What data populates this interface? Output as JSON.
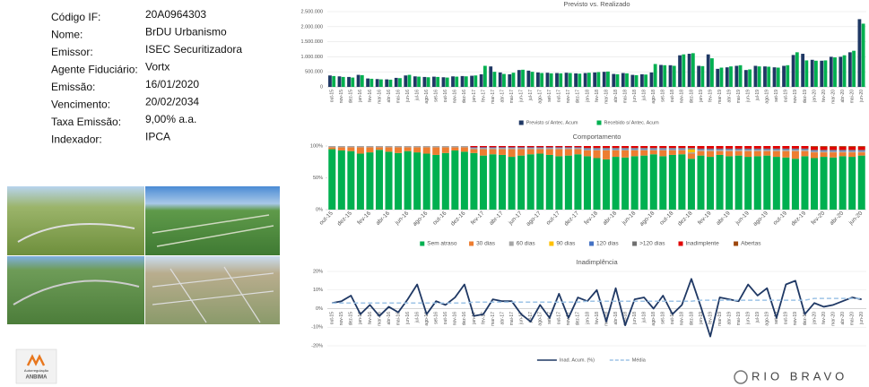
{
  "info": [
    {
      "label": "Código IF:",
      "value": "20A0964303"
    },
    {
      "label": "Nome:",
      "value": "BrDU Urbanismo"
    },
    {
      "label": "Emissor:",
      "value": "ISEC Securitizadora"
    },
    {
      "label": "Agente Fiduciário:",
      "value": "Vortx"
    },
    {
      "label": "Emissão:",
      "value": "16/01/2020"
    },
    {
      "label": "Vencimento:",
      "value": "20/02/2034"
    },
    {
      "label": "Taxa Emissão:",
      "value": "9,00% a.a."
    },
    {
      "label": "Indexador:",
      "value": "IPCA"
    }
  ],
  "logos": {
    "anbima_top": "Autorregulação",
    "anbima_bottom": "ANBIMA",
    "company": "RIO BRAVO"
  },
  "chart_data": [
    {
      "type": "bar",
      "title": "Previsto vs. Realizado",
      "categories": [
        "out-15",
        "nov-15",
        "dez-15",
        "jan-16",
        "fev-16",
        "mar-16",
        "abr-16",
        "mai-16",
        "jun-16",
        "jul-16",
        "ago-16",
        "set-16",
        "out-16",
        "nov-16",
        "dez-16",
        "jan-17",
        "fev-17",
        "mar-17",
        "abr-17",
        "mai-17",
        "jun-17",
        "jul-17",
        "ago-17",
        "set-17",
        "out-17",
        "nov-17",
        "dez-17",
        "jan-18",
        "fev-18",
        "mar-18",
        "abr-18",
        "mai-18",
        "jun-18",
        "jul-18",
        "ago-18",
        "set-18",
        "out-18",
        "nov-18",
        "dez-18",
        "jan-19",
        "fev-19",
        "mar-19",
        "abr-19",
        "mai-19",
        "jun-19",
        "jul-19",
        "ago-19",
        "set-19",
        "out-19",
        "nov-19",
        "dez-19",
        "jan-20",
        "fev-20",
        "mar-20",
        "abr-20",
        "mai-20",
        "jun-20"
      ],
      "series": [
        {
          "name": "Previsto s/ Antec. Acum",
          "color": "#1f3864",
          "values": [
            380000,
            350000,
            330000,
            400000,
            280000,
            260000,
            250000,
            300000,
            380000,
            350000,
            330000,
            340000,
            320000,
            350000,
            360000,
            370000,
            420000,
            680000,
            480000,
            420000,
            560000,
            540000,
            480000,
            470000,
            460000,
            470000,
            450000,
            460000,
            480000,
            500000,
            430000,
            460000,
            400000,
            420000,
            480000,
            730000,
            720000,
            1050000,
            1100000,
            700000,
            1080000,
            600000,
            650000,
            700000,
            560000,
            700000,
            680000,
            650000,
            700000,
            1060000,
            1100000,
            900000,
            870000,
            1000000,
            1000000,
            1150000,
            2250000
          ]
        },
        {
          "name": "Recebido s/ Antec. Acum",
          "color": "#00b050",
          "values": [
            360000,
            330000,
            310000,
            390000,
            270000,
            250000,
            240000,
            290000,
            400000,
            340000,
            320000,
            330000,
            310000,
            340000,
            350000,
            380000,
            700000,
            500000,
            430000,
            470000,
            570000,
            500000,
            460000,
            450000,
            450000,
            460000,
            440000,
            470000,
            490000,
            510000,
            420000,
            450000,
            390000,
            410000,
            760000,
            720000,
            700000,
            1080000,
            1120000,
            690000,
            950000,
            640000,
            680000,
            720000,
            580000,
            680000,
            670000,
            640000,
            720000,
            1150000,
            880000,
            870000,
            880000,
            980000,
            1050000,
            1200000,
            2100000
          ]
        }
      ],
      "ylim": [
        0,
        2500000
      ],
      "yticks": [
        0,
        {
          "value": 500000,
          "label": "500.000"
        },
        {
          "value": 1000000,
          "label": "1.000.000"
        },
        {
          "value": 1500000,
          "label": "1.500.000"
        },
        {
          "value": 2000000,
          "label": "2.000.000"
        },
        {
          "value": 2500000,
          "label": "2.500.000"
        }
      ],
      "grid": true,
      "legend": "bottom"
    },
    {
      "type": "stacked_bar",
      "title": "Comportamento",
      "categories": [
        "out-15",
        null,
        "dez-15",
        null,
        "fev-16",
        null,
        "abr-16",
        null,
        "jun-16",
        null,
        "ago-16",
        null,
        "out-16",
        null,
        "dez-16",
        null,
        "fev-17",
        null,
        "abr-17",
        null,
        "jun-17",
        null,
        "ago-17",
        null,
        "out-17",
        null,
        "dez-17",
        null,
        "fev-18",
        null,
        "abr-18",
        null,
        "jun-18",
        null,
        "ago-18",
        null,
        "out-18",
        null,
        "dez-18",
        null,
        "fev-19",
        null,
        "abr-19",
        null,
        "jun-19",
        null,
        "ago-19",
        null,
        "out-19",
        null,
        "dez-19",
        null,
        "fev-20",
        null,
        "abr-20",
        null,
        "jun-20"
      ],
      "series": [
        {
          "name": "Sem atraso",
          "color": "#00b050",
          "values": [
            95,
            93,
            92,
            88,
            90,
            94,
            91,
            89,
            92,
            90,
            88,
            86,
            89,
            93,
            91,
            89,
            85,
            87,
            86,
            83,
            85,
            87,
            88,
            86,
            84,
            85,
            87,
            84,
            81,
            79,
            83,
            82,
            84,
            85,
            87,
            84,
            86,
            87,
            80,
            85,
            83,
            86,
            84,
            85,
            83,
            84,
            85,
            83,
            82,
            80,
            84,
            81,
            83,
            82,
            84,
            83,
            85
          ]
        },
        {
          "name": "30 dias",
          "color": "#ed7d31",
          "values": [
            3,
            5,
            6,
            10,
            8,
            4,
            7,
            9,
            6,
            8,
            10,
            12,
            9,
            5,
            7,
            6,
            10,
            8,
            9,
            12,
            10,
            8,
            7,
            9,
            11,
            10,
            8,
            9,
            12,
            14,
            10,
            11,
            9,
            8,
            6,
            9,
            7,
            6,
            8,
            7,
            9,
            6,
            8,
            7,
            9,
            8,
            7,
            9,
            10,
            12,
            8,
            9,
            7,
            8,
            6,
            7,
            5
          ]
        },
        {
          "name": "60 dias",
          "color": "#a5a5a5",
          "values": [
            2,
            2,
            2,
            2,
            2,
            2,
            2,
            2,
            2,
            2,
            2,
            2,
            2,
            2,
            2,
            2,
            2,
            2,
            2,
            2,
            2,
            2,
            2,
            2,
            2,
            2,
            2,
            2,
            2,
            2,
            2,
            2,
            2,
            2,
            2,
            2,
            2,
            2,
            2,
            2,
            2,
            2,
            2,
            2,
            2,
            2,
            2,
            2,
            2,
            2,
            2,
            2,
            2,
            2,
            2,
            2,
            2
          ]
        },
        {
          "name": "90 dias",
          "color": "#ffc000",
          "values": [
            0,
            0,
            0,
            0,
            0,
            0,
            0,
            0,
            0,
            0,
            0,
            0,
            0,
            0,
            0,
            0,
            0,
            0,
            0,
            0,
            0,
            0,
            0,
            0,
            0,
            0,
            0,
            0,
            0,
            0,
            0,
            0,
            0,
            0,
            0,
            0,
            0,
            0,
            5,
            0,
            0,
            0,
            0,
            0,
            0,
            0,
            0,
            0,
            0,
            0,
            0,
            0,
            0,
            0,
            0,
            0,
            0
          ]
        },
        {
          "name": "120 dias",
          "color": "#4472c4",
          "values": [
            0,
            0,
            0,
            0,
            0,
            0,
            0,
            0,
            0,
            0,
            0,
            0,
            0,
            0,
            0,
            1,
            1,
            1,
            1,
            1,
            1,
            1,
            1,
            1,
            1,
            1,
            1,
            1,
            1,
            1,
            1,
            1,
            1,
            1,
            1,
            1,
            1,
            1,
            1,
            1,
            1,
            1,
            1,
            1,
            1,
            1,
            1,
            1,
            1,
            1,
            1,
            1,
            1,
            1,
            1,
            1,
            1
          ]
        },
        {
          "name": ">120 dias",
          "color": "#6f6f6f",
          "values": [
            0,
            0,
            0,
            0,
            0,
            0,
            0,
            0,
            0,
            0,
            0,
            0,
            0,
            0,
            0,
            0,
            0,
            0,
            0,
            0,
            0,
            0,
            0,
            0,
            0,
            0,
            0,
            1,
            1,
            1,
            1,
            1,
            1,
            1,
            1,
            1,
            1,
            1,
            1,
            1,
            1,
            1,
            1,
            1,
            1,
            1,
            1,
            1,
            1,
            1,
            1,
            1,
            1,
            1,
            1,
            1,
            1
          ]
        },
        {
          "name": "Inadimplente",
          "color": "#e00000",
          "values": [
            0,
            0,
            0,
            0,
            0,
            0,
            0,
            0,
            0,
            0,
            0,
            0,
            0,
            0,
            0,
            2,
            2,
            2,
            2,
            2,
            2,
            2,
            2,
            2,
            2,
            2,
            2,
            3,
            3,
            3,
            3,
            3,
            3,
            3,
            3,
            3,
            3,
            3,
            3,
            4,
            4,
            4,
            4,
            4,
            4,
            4,
            4,
            4,
            4,
            4,
            4,
            5,
            5,
            5,
            5,
            5,
            5
          ]
        },
        {
          "name": "Abertas",
          "color": "#9e480e",
          "values": [
            0,
            0,
            0,
            0,
            0,
            0,
            0,
            0,
            0,
            0,
            0,
            0,
            0,
            0,
            0,
            0,
            0,
            0,
            0,
            0,
            0,
            0,
            0,
            0,
            0,
            0,
            0,
            0,
            0,
            0,
            0,
            0,
            0,
            0,
            0,
            0,
            0,
            0,
            0,
            0,
            0,
            0,
            0,
            0,
            0,
            0,
            0,
            0,
            0,
            0,
            0,
            1,
            1,
            1,
            1,
            1,
            1
          ]
        }
      ],
      "ylim": [
        0,
        100
      ],
      "yticks": [
        {
          "value": 0,
          "label": "0%"
        },
        {
          "value": 50,
          "label": "50%"
        },
        {
          "value": 100,
          "label": "100%"
        }
      ],
      "grid": false,
      "legend": "bottom"
    },
    {
      "type": "line",
      "title": "Inadimplência",
      "categories": [
        "out-15",
        "nov-15",
        "dez-15",
        "jan-16",
        "fev-16",
        "mar-16",
        "abr-16",
        "mai-16",
        "jun-16",
        "jul-16",
        "ago-16",
        "set-16",
        "out-16",
        "nov-16",
        "dez-16",
        "jan-17",
        "fev-17",
        "mar-17",
        "abr-17",
        "mai-17",
        "jun-17",
        "jul-17",
        "ago-17",
        "set-17",
        "out-17",
        "nov-17",
        "dez-17",
        "jan-18",
        "fev-18",
        "mar-18",
        "abr-18",
        "mai-18",
        "jun-18",
        "jul-18",
        "ago-18",
        "set-18",
        "out-18",
        "nov-18",
        "dez-18",
        "jan-19",
        "fev-19",
        "mar-19",
        "abr-19",
        "mai-19",
        "jun-19",
        "jul-19",
        "ago-19",
        "set-19",
        "out-19",
        "nov-19",
        "dez-19",
        "jan-20",
        "fev-20",
        "mar-20",
        "abr-20",
        "mai-20",
        "jun-20"
      ],
      "series": [
        {
          "name": "Inad. Acum. (%)",
          "color": "#1f3864",
          "style": "solid",
          "values": [
            3,
            4,
            7,
            -3,
            2,
            -4,
            1,
            -2,
            5,
            13,
            -3,
            4,
            2,
            6,
            13,
            -4,
            -3,
            5,
            4,
            4,
            -3,
            -7,
            2,
            -5,
            8,
            -5,
            6,
            4,
            10,
            -7,
            11,
            -9,
            5,
            6,
            0,
            7,
            -3,
            2,
            16,
            1,
            -15,
            6,
            5,
            4,
            13,
            7,
            11,
            -5,
            13,
            15,
            -3,
            3,
            1,
            2,
            4,
            6,
            5
          ]
        },
        {
          "name": "Média",
          "color": "#9dc3e6",
          "style": "dashed",
          "values": [
            3,
            3,
            3,
            3,
            3,
            3,
            3,
            3,
            3,
            3,
            3,
            3,
            3,
            3,
            3,
            3.5,
            3.5,
            3.5,
            3.5,
            3.5,
            3.5,
            3.5,
            3.5,
            3.5,
            3.5,
            3.5,
            3.5,
            4,
            4,
            4,
            4,
            4,
            4,
            4,
            4,
            4,
            4,
            4,
            4,
            4.5,
            4.5,
            4.5,
            4.5,
            4.5,
            4.5,
            4.5,
            4.5,
            4.5,
            4.5,
            4.5,
            4.5,
            5.5,
            5.5,
            5.5,
            5.5,
            5.5,
            5.5
          ]
        }
      ],
      "ylim": [
        -20,
        20
      ],
      "yticks": [
        {
          "value": -20,
          "label": "-20%"
        },
        {
          "value": -10,
          "label": "-10%"
        },
        {
          "value": 0,
          "label": "0%"
        },
        {
          "value": 10,
          "label": "10%"
        },
        {
          "value": 20,
          "label": "20%"
        }
      ],
      "grid": true,
      "legend": "bottom"
    }
  ]
}
